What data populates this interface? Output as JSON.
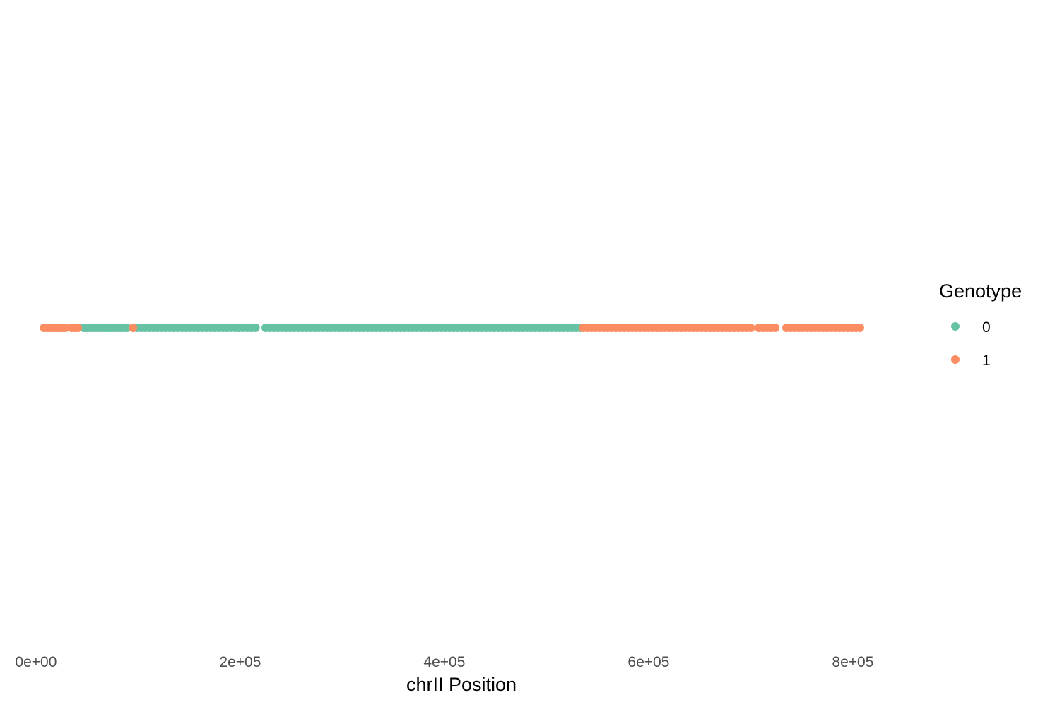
{
  "chart_data": {
    "type": "scatter",
    "title": "",
    "xlabel": "chrII Position",
    "ylabel": "",
    "xlim": [
      -2000,
      816000
    ],
    "x_ticks": [
      0,
      200000,
      400000,
      600000,
      800000
    ],
    "x_tick_labels": [
      "0e+00",
      "2e+05",
      "4e+05",
      "6e+05",
      "8e+05"
    ],
    "grid": false,
    "legend": {
      "title": "Genotype",
      "placement": "right",
      "entries": [
        {
          "label": "0",
          "color": "#66c2a5"
        },
        {
          "label": "1",
          "color": "#fc8d62"
        }
      ]
    },
    "series": [
      {
        "name": "0",
        "color": "#66c2a5",
        "x": [
          47000,
          50000,
          53000,
          56000,
          59000,
          62000,
          65000,
          68000,
          71000,
          74000,
          77000,
          80000,
          83000,
          86000,
          89000,
          99000,
          103000,
          107000,
          111000,
          115000,
          119000,
          123000,
          127000,
          131000,
          135000,
          139000,
          143000,
          147000,
          151000,
          155000,
          159000,
          163000,
          167000,
          171000,
          175000,
          179000,
          183000,
          187000,
          191000,
          195000,
          199000,
          203000,
          207000,
          211000,
          215000,
          225000,
          229000,
          233000,
          237000,
          241000,
          245000,
          249000,
          253000,
          257000,
          261000,
          265000,
          269000,
          273000,
          277000,
          281000,
          285000,
          289000,
          293000,
          297000,
          301000,
          305000,
          309000,
          313000,
          317000,
          321000,
          325000,
          329000,
          333000,
          337000,
          341000,
          345000,
          349000,
          353000,
          357000,
          361000,
          365000,
          369000,
          373000,
          377000,
          381000,
          385000,
          389000,
          393000,
          397000,
          401000,
          405000,
          409000,
          413000,
          417000,
          421000,
          425000,
          429000,
          433000,
          437000,
          441000,
          445000,
          449000,
          453000,
          457000,
          461000,
          465000,
          469000,
          473000,
          477000,
          481000,
          485000,
          489000,
          493000,
          497000,
          501000,
          505000,
          509000,
          513000,
          517000,
          521000,
          525000,
          529000,
          533000
        ],
        "y": [
          0,
          0,
          0,
          0,
          0,
          0,
          0,
          0,
          0,
          0,
          0,
          0,
          0,
          0,
          0,
          0,
          0,
          0,
          0,
          0,
          0,
          0,
          0,
          0,
          0,
          0,
          0,
          0,
          0,
          0,
          0,
          0,
          0,
          0,
          0,
          0,
          0,
          0,
          0,
          0,
          0,
          0,
          0,
          0,
          0,
          0,
          0,
          0,
          0,
          0,
          0,
          0,
          0,
          0,
          0,
          0,
          0,
          0,
          0,
          0,
          0,
          0,
          0,
          0,
          0,
          0,
          0,
          0,
          0,
          0,
          0,
          0,
          0,
          0,
          0,
          0,
          0,
          0,
          0,
          0,
          0,
          0,
          0,
          0,
          0,
          0,
          0,
          0,
          0,
          0,
          0,
          0,
          0,
          0,
          0,
          0,
          0,
          0,
          0,
          0,
          0,
          0,
          0,
          0,
          0,
          0,
          0,
          0,
          0,
          0,
          0,
          0,
          0,
          0,
          0,
          0,
          0,
          0,
          0,
          0,
          0,
          0,
          0
        ]
      },
      {
        "name": "1",
        "color": "#fc8d62",
        "x": [
          8000,
          11000,
          14000,
          17000,
          20000,
          23000,
          26000,
          29000,
          35000,
          38000,
          41000,
          95000,
          536000,
          540000,
          544000,
          548000,
          552000,
          556000,
          560000,
          564000,
          568000,
          572000,
          576000,
          580000,
          584000,
          588000,
          592000,
          596000,
          600000,
          604000,
          608000,
          612000,
          616000,
          620000,
          624000,
          628000,
          632000,
          636000,
          640000,
          644000,
          648000,
          652000,
          656000,
          660000,
          664000,
          668000,
          672000,
          676000,
          680000,
          684000,
          688000,
          692000,
          696000,
          700000,
          708000,
          712000,
          716000,
          720000,
          724000,
          735000,
          739000,
          743000,
          747000,
          751000,
          755000,
          759000,
          763000,
          767000,
          771000,
          775000,
          779000,
          783000,
          787000,
          791000,
          795000,
          799000,
          803000,
          807000
        ],
        "y": [
          0,
          0,
          0,
          0,
          0,
          0,
          0,
          0,
          0,
          0,
          0,
          0,
          0,
          0,
          0,
          0,
          0,
          0,
          0,
          0,
          0,
          0,
          0,
          0,
          0,
          0,
          0,
          0,
          0,
          0,
          0,
          0,
          0,
          0,
          0,
          0,
          0,
          0,
          0,
          0,
          0,
          0,
          0,
          0,
          0,
          0,
          0,
          0,
          0,
          0,
          0,
          0,
          0,
          0,
          0,
          0,
          0,
          0,
          0,
          0,
          0,
          0,
          0,
          0,
          0,
          0,
          0,
          0,
          0,
          0,
          0,
          0,
          0,
          0,
          0,
          0,
          0,
          0
        ]
      }
    ]
  }
}
